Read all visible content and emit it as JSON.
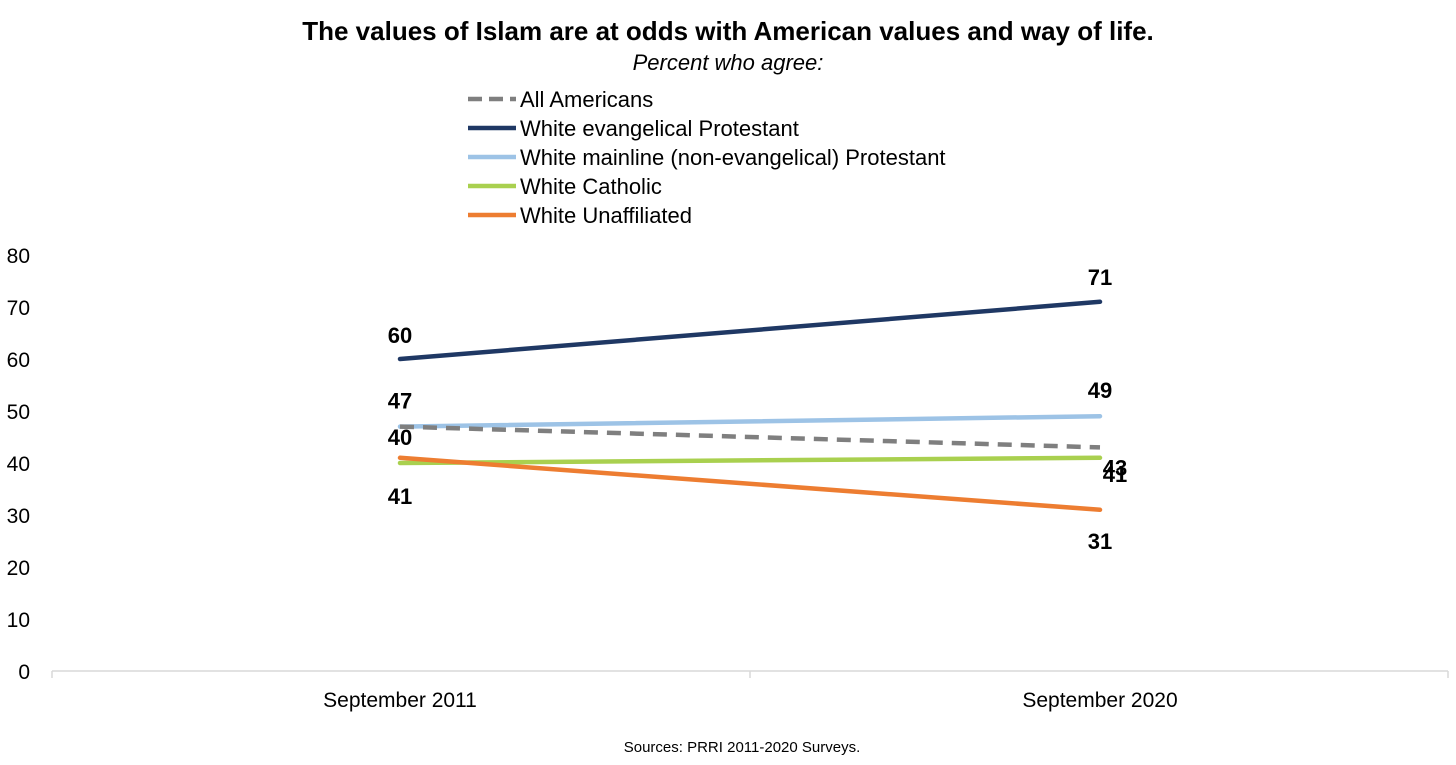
{
  "chart_data": {
    "type": "line",
    "title": "The values of Islam are at odds with American values and way of life.",
    "subtitle": "Percent who agree:",
    "source": "Sources: PRRI 2011-2020 Surveys.",
    "x": [
      "September 2011",
      "September 2020"
    ],
    "ylim": [
      0,
      80
    ],
    "yticks": [
      0,
      10,
      20,
      30,
      40,
      50,
      60,
      70,
      80
    ],
    "grid": false,
    "legend_position": "top-center",
    "series": [
      {
        "name": "All Americans",
        "values": [
          47,
          43
        ],
        "color": "#7f7f7f",
        "dashed": true,
        "labels": [
          "",
          "43"
        ]
      },
      {
        "name": "White evangelical Protestant",
        "values": [
          60,
          71
        ],
        "color": "#1f3864",
        "dashed": false,
        "labels": [
          "60",
          "71"
        ]
      },
      {
        "name": "White mainline (non-evangelical) Protestant",
        "values": [
          47,
          49
        ],
        "color": "#9dc3e6",
        "dashed": false,
        "labels": [
          "47",
          "49"
        ]
      },
      {
        "name": "White Catholic",
        "values": [
          40,
          41
        ],
        "color": "#a9d04f",
        "dashed": false,
        "labels": [
          "40",
          "41"
        ]
      },
      {
        "name": "White Unaffiliated",
        "values": [
          41,
          31
        ],
        "color": "#ed7d31",
        "dashed": false,
        "labels": [
          "41",
          "31"
        ]
      }
    ]
  }
}
